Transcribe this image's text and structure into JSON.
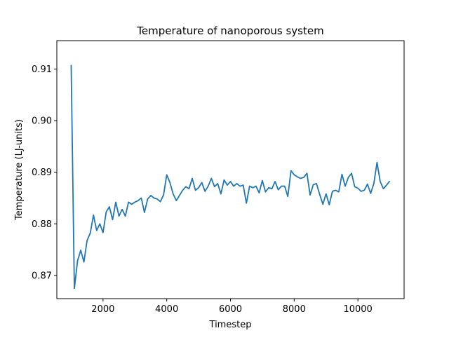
{
  "chart_data": {
    "type": "line",
    "title": "Temperature of nanoporous system",
    "xlabel": "Timestep",
    "ylabel": "Temperature (LJ-units)",
    "xlim": [
      550,
      11450
    ],
    "ylim": [
      0.8655,
      0.9155
    ],
    "xticks": [
      2000,
      4000,
      6000,
      8000,
      10000
    ],
    "yticks": [
      0.87,
      0.88,
      0.89,
      0.9,
      0.91
    ],
    "xtick_labels": [
      "2000",
      "4000",
      "6000",
      "8000",
      "10000"
    ],
    "ytick_labels": [
      "0.87",
      "0.88",
      "0.89",
      "0.90",
      "0.91"
    ],
    "grid": false,
    "legend": "none",
    "series": [
      {
        "color": "#1f77b4",
        "x": [
          1000,
          1100,
          1200,
          1300,
          1400,
          1500,
          1600,
          1700,
          1800,
          1900,
          2000,
          2100,
          2200,
          2300,
          2400,
          2500,
          2600,
          2700,
          2800,
          2900,
          3000,
          3100,
          3200,
          3300,
          3400,
          3500,
          3600,
          3700,
          3800,
          3900,
          4000,
          4100,
          4200,
          4300,
          4400,
          4500,
          4600,
          4700,
          4800,
          4900,
          5000,
          5100,
          5200,
          5300,
          5400,
          5500,
          5600,
          5700,
          5800,
          5900,
          6000,
          6100,
          6200,
          6300,
          6400,
          6500,
          6600,
          6700,
          6800,
          6900,
          7000,
          7100,
          7200,
          7300,
          7400,
          7500,
          7600,
          7700,
          7800,
          7900,
          8000,
          8100,
          8200,
          8300,
          8400,
          8500,
          8600,
          8700,
          8800,
          8900,
          9000,
          9100,
          9200,
          9300,
          9400,
          9500,
          9600,
          9700,
          9800,
          9900,
          10000,
          10100,
          10200,
          10300,
          10400,
          10500,
          10600,
          10700,
          10800,
          10900,
          11000
        ],
        "y": [
          0.9108,
          0.8675,
          0.8728,
          0.8749,
          0.8726,
          0.8768,
          0.8782,
          0.8817,
          0.8787,
          0.88,
          0.8783,
          0.8823,
          0.8833,
          0.8808,
          0.8842,
          0.8815,
          0.8828,
          0.8815,
          0.8842,
          0.8838,
          0.8842,
          0.8845,
          0.885,
          0.8822,
          0.8848,
          0.8855,
          0.885,
          0.8848,
          0.8843,
          0.8856,
          0.8895,
          0.888,
          0.8858,
          0.8845,
          0.8855,
          0.8865,
          0.8872,
          0.8868,
          0.8888,
          0.8865,
          0.887,
          0.888,
          0.8863,
          0.8873,
          0.8888,
          0.8872,
          0.8878,
          0.8858,
          0.8885,
          0.8875,
          0.8882,
          0.8873,
          0.8878,
          0.8873,
          0.8875,
          0.884,
          0.8873,
          0.887,
          0.8873,
          0.886,
          0.8884,
          0.8862,
          0.887,
          0.8868,
          0.8882,
          0.8866,
          0.8873,
          0.8873,
          0.8853,
          0.8903,
          0.8895,
          0.8891,
          0.8888,
          0.889,
          0.8898,
          0.8856,
          0.8876,
          0.8878,
          0.8857,
          0.8838,
          0.8858,
          0.8837,
          0.8863,
          0.8865,
          0.8862,
          0.8896,
          0.8873,
          0.889,
          0.8898,
          0.8872,
          0.8869,
          0.8863,
          0.8865,
          0.8877,
          0.8859,
          0.8878,
          0.8919,
          0.8882,
          0.8868,
          0.8875,
          0.8883
        ]
      }
    ]
  }
}
